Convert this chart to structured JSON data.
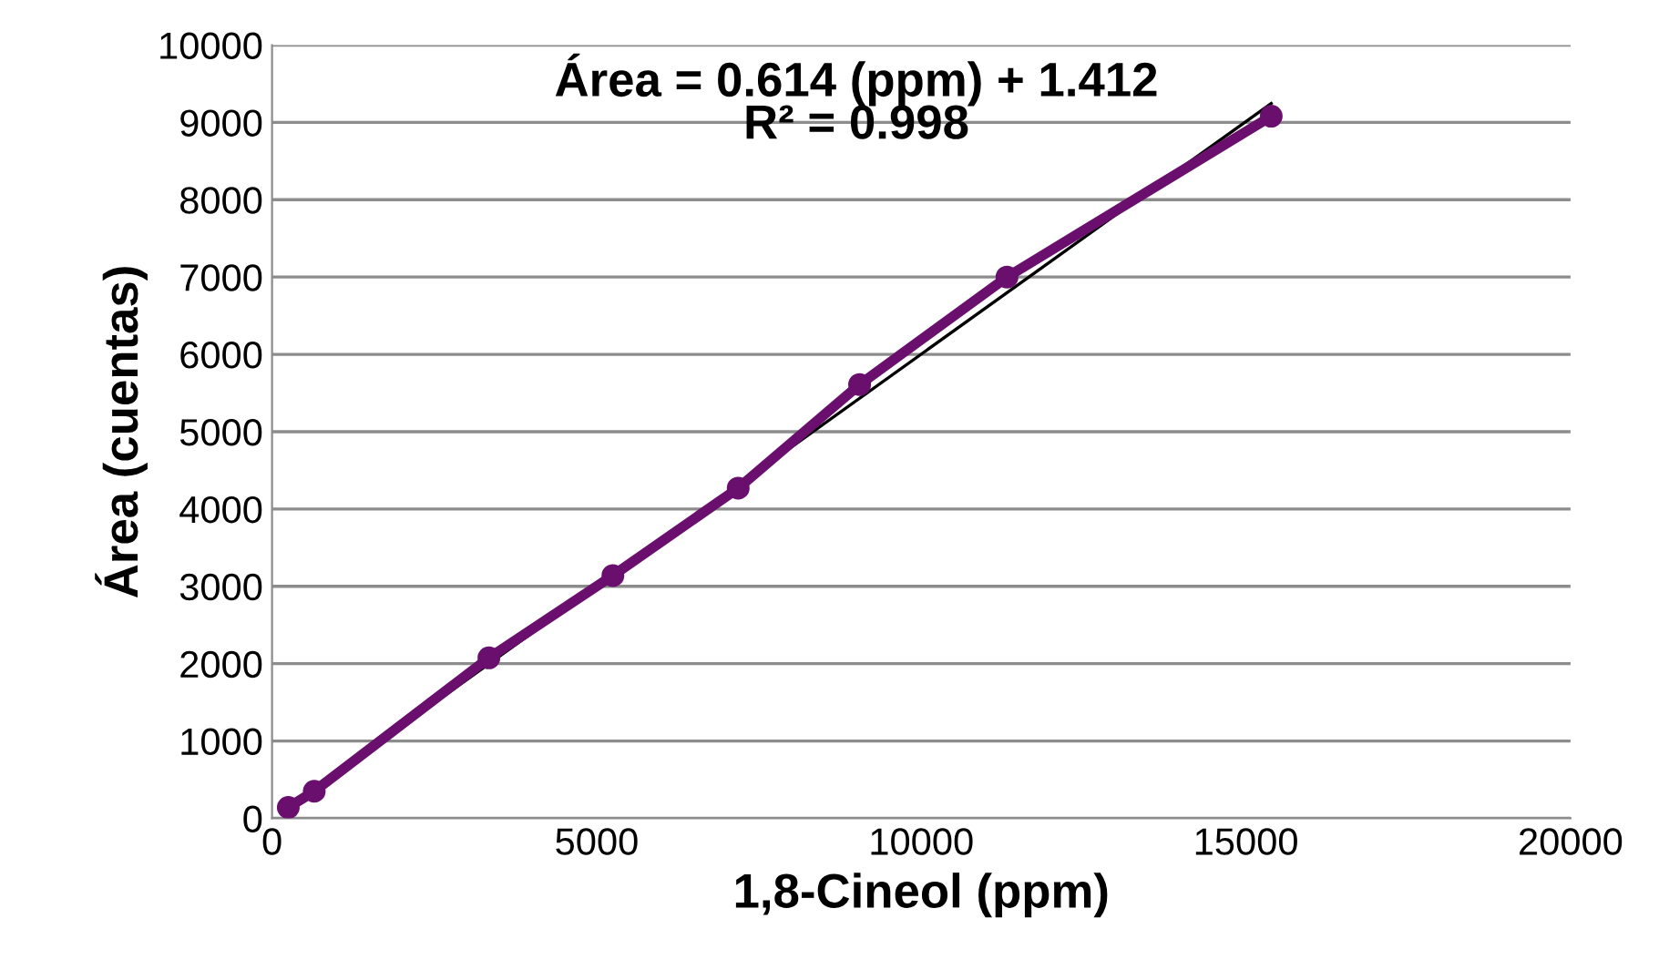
{
  "chart_data": {
    "type": "line",
    "xlabel": "1,8-Cineol (ppm)",
    "ylabel": "Área (cuentas)",
    "annotations": [
      "Área = 0.614 (ppm) + 1.412",
      "R² = 0.998"
    ],
    "series": [
      {
        "color": "#6a0f6e",
        "x": [
          250,
          650,
          3340,
          5250,
          7180,
          9050,
          11320,
          15390
        ],
        "values": [
          140,
          350,
          2075,
          3140,
          4270,
          5610,
          7000,
          9080
        ],
        "marker": "circle"
      },
      {
        "type": "line",
        "color": "#000000",
        "x": [
          250,
          15390
        ],
        "values": [
          140,
          9245
        ],
        "marker": "none"
      }
    ],
    "xlim": [
      0,
      20000
    ],
    "xticks": [
      0,
      5000,
      10000,
      15000,
      20000
    ],
    "ylim": [
      0,
      10000
    ],
    "yticks": [
      0,
      1000,
      2000,
      3000,
      4000,
      5000,
      6000,
      7000,
      8000,
      9000,
      10000
    ],
    "grid": "y",
    "legend": false,
    "line_style": "solid"
  }
}
